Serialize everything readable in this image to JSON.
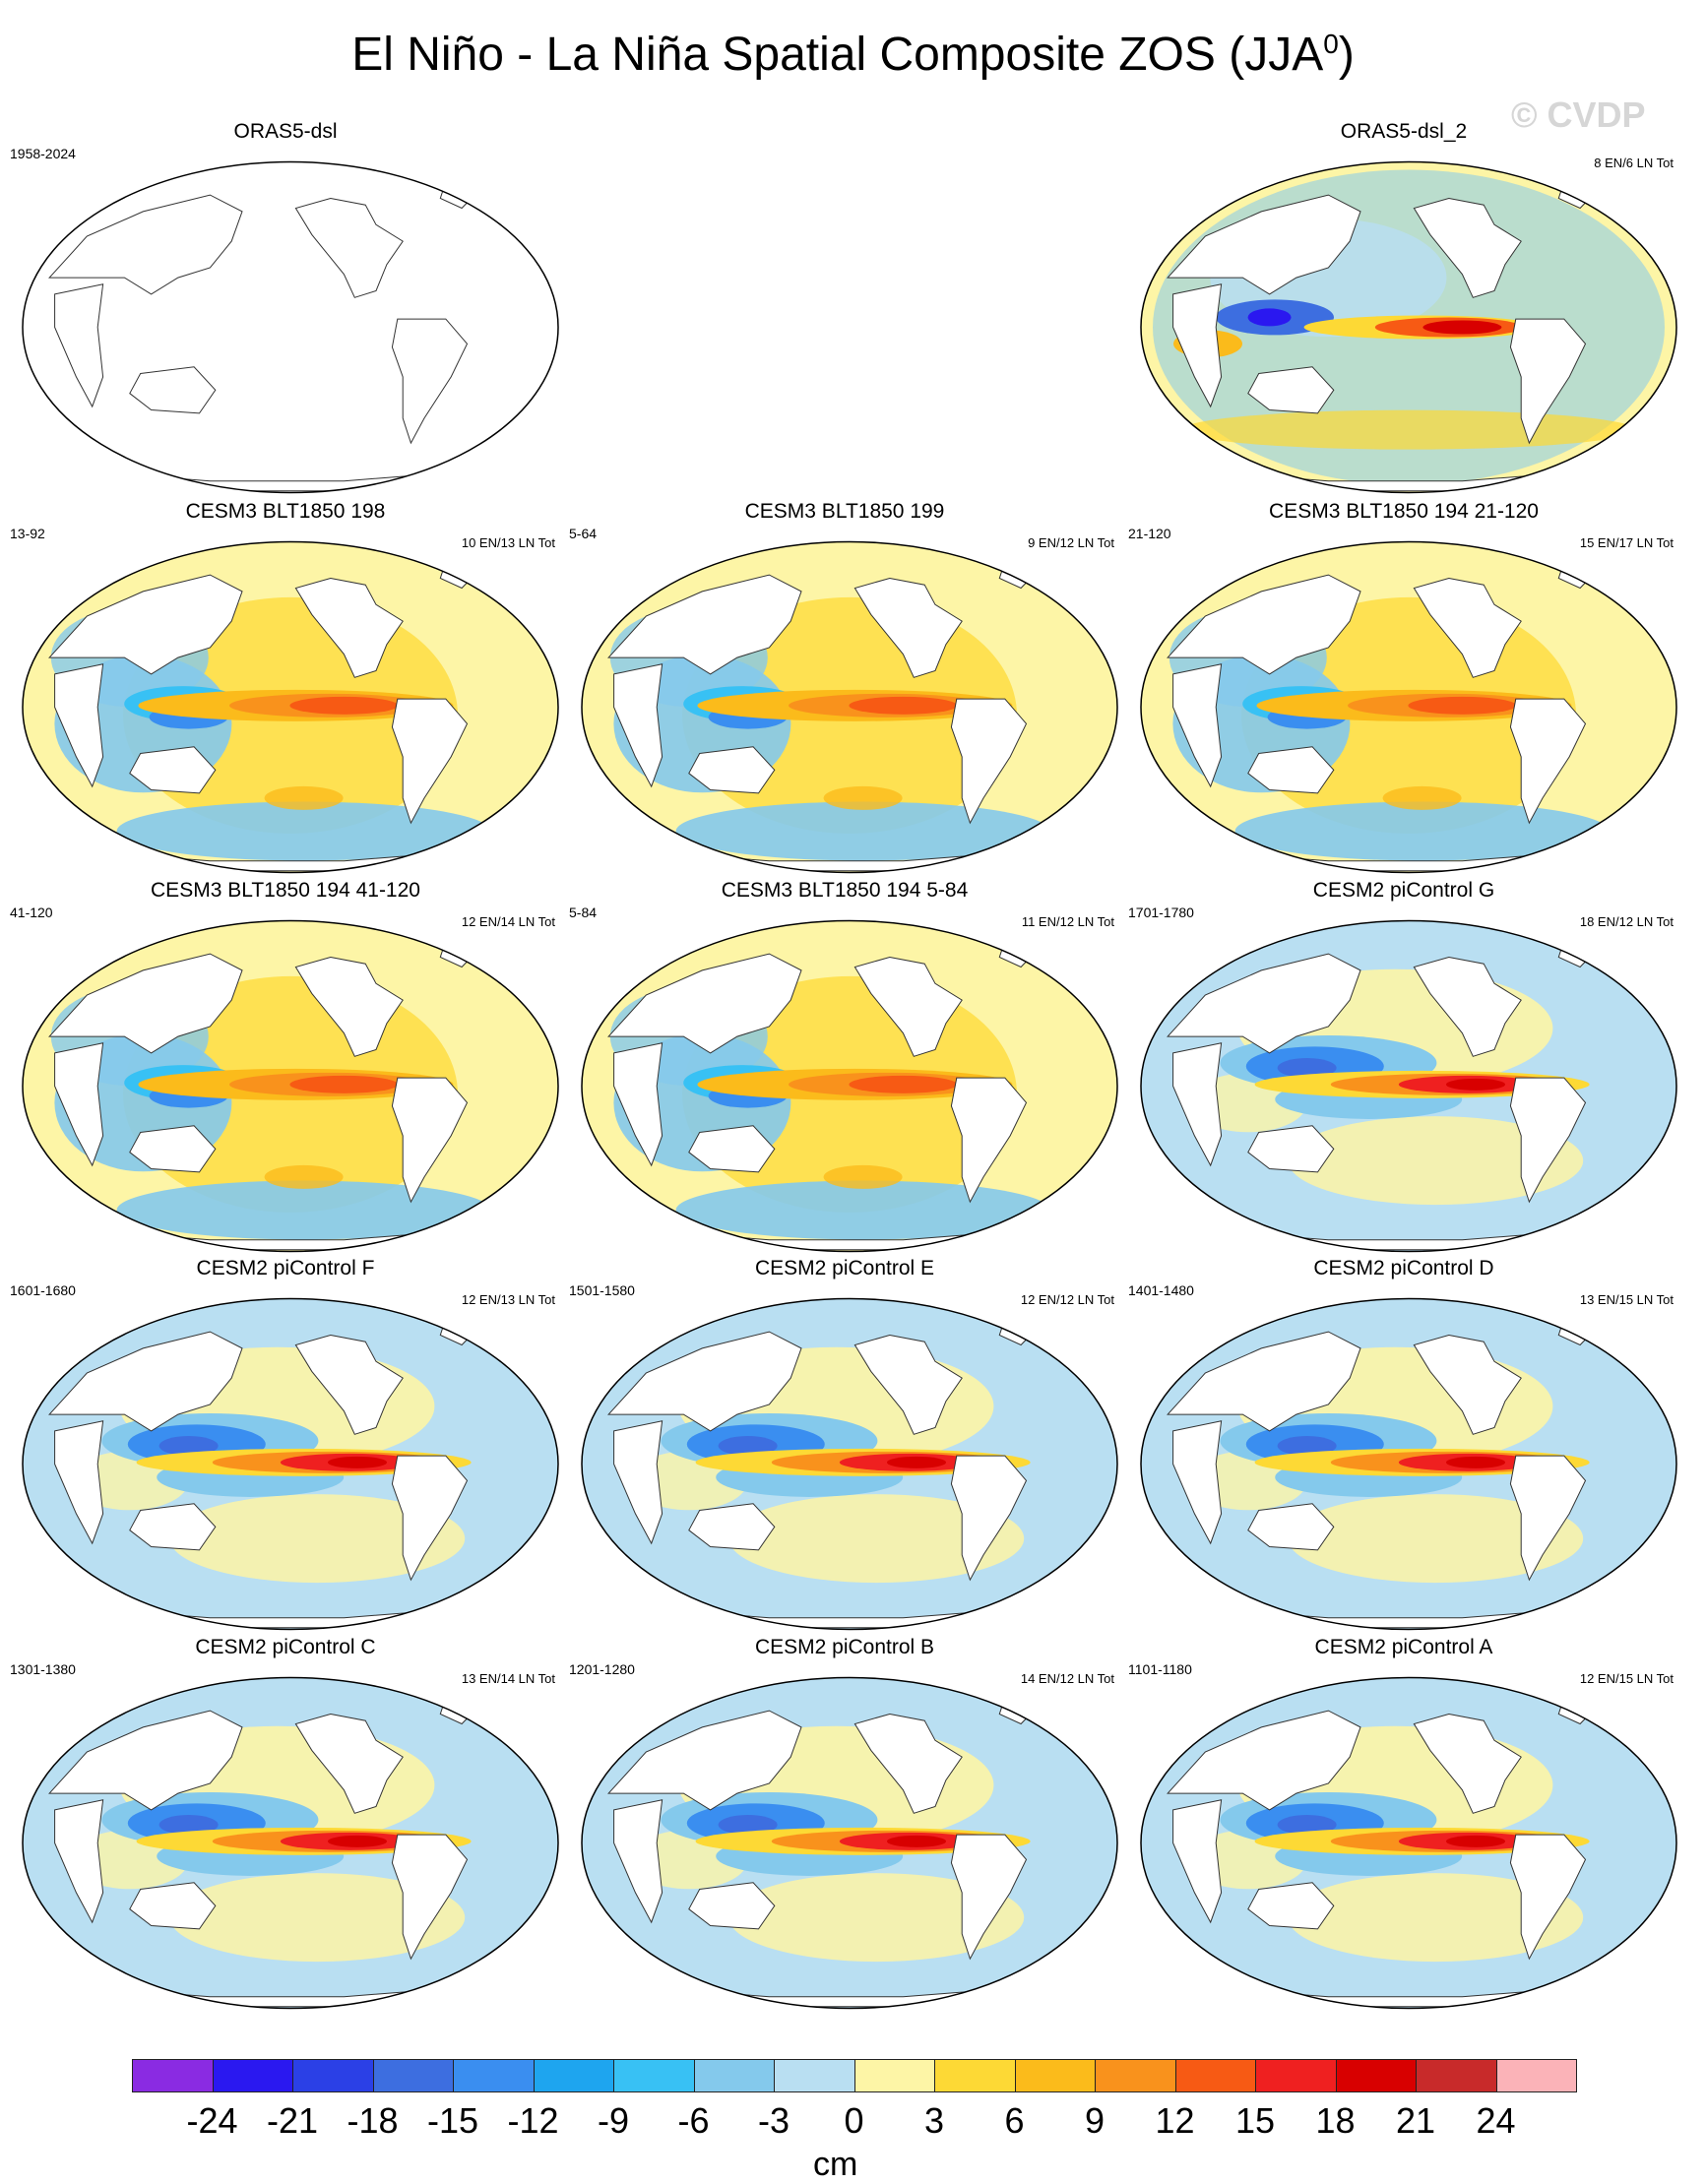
{
  "title": {
    "main": "El Niño - La Niña Spatial Composite ZOS (JJA",
    "sup": "0",
    "close": ")"
  },
  "watermark": "© CVDP",
  "panels": [
    {
      "title": "ORAS5-dsl",
      "left_label": "1958-2024",
      "right_label": "",
      "style": "blank"
    },
    {
      "title": "",
      "left_label": "",
      "right_label": "",
      "style": "hidden"
    },
    {
      "title": "ORAS5-dsl_2",
      "left_label": "",
      "right_label": "8 EN/6 LN Tot",
      "style": "obs"
    },
    {
      "title": "CESM3 BLT1850 198",
      "left_label": "13-92",
      "right_label": "10 EN/13 LN Tot",
      "style": "noisy"
    },
    {
      "title": "CESM3 BLT1850 199",
      "left_label": "5-64",
      "right_label": "9 EN/12 LN Tot",
      "style": "noisy"
    },
    {
      "title": "CESM3 BLT1850 194 21-120",
      "left_label": "21-120",
      "right_label": "15 EN/17 LN Tot",
      "style": "noisy"
    },
    {
      "title": "CESM3 BLT1850 194 41-120",
      "left_label": "41-120",
      "right_label": "12 EN/14 LN Tot",
      "style": "noisy"
    },
    {
      "title": "CESM3 BLT1850 194 5-84",
      "left_label": "5-84",
      "right_label": "11 EN/12 LN Tot",
      "style": "noisy"
    },
    {
      "title": "CESM2 piControl G",
      "left_label": "1701-1780",
      "right_label": "18 EN/12 LN Tot",
      "style": "smooth"
    },
    {
      "title": "CESM2 piControl F",
      "left_label": "1601-1680",
      "right_label": "12 EN/13 LN Tot",
      "style": "smooth"
    },
    {
      "title": "CESM2 piControl E",
      "left_label": "1501-1580",
      "right_label": "12 EN/12 LN Tot",
      "style": "smooth"
    },
    {
      "title": "CESM2 piControl D",
      "left_label": "1401-1480",
      "right_label": "13 EN/15 LN Tot",
      "style": "smooth"
    },
    {
      "title": "CESM2 piControl C",
      "left_label": "1301-1380",
      "right_label": "13 EN/14 LN Tot",
      "style": "smooth"
    },
    {
      "title": "CESM2 piControl B",
      "left_label": "1201-1280",
      "right_label": "14 EN/12 LN Tot",
      "style": "smooth"
    },
    {
      "title": "CESM2 piControl A",
      "left_label": "1101-1180",
      "right_label": "12 EN/15 LN Tot",
      "style": "smooth"
    }
  ],
  "colorbar": {
    "colors": [
      "#8a2be2",
      "#2a18f0",
      "#2b40e6",
      "#3d6ee0",
      "#3a8ef0",
      "#1ea5ef",
      "#38c1f4",
      "#84c9ec",
      "#b9dff2",
      "#fdf5a6",
      "#fdd935",
      "#fbbb1b",
      "#f9921c",
      "#f75a14",
      "#ef2020",
      "#d80000",
      "#c82a2a",
      "#fbb3b8"
    ],
    "ticks": [
      "-24",
      "-21",
      "-18",
      "-15",
      "-12",
      "-9",
      "-6",
      "-3",
      "0",
      "3",
      "6",
      "9",
      "12",
      "15",
      "18",
      "21",
      "24"
    ],
    "unit": "cm"
  }
}
